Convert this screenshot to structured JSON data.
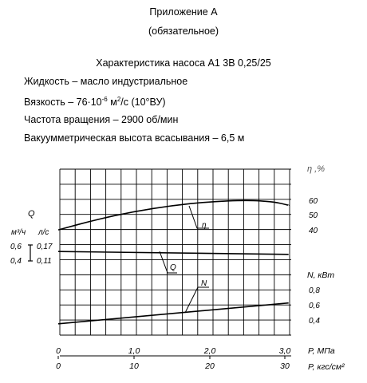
{
  "header": {
    "appendix": "Приложение А",
    "mandatory": "(обязательное)",
    "title": "Характеристика насоса А1 3В 0,25/25",
    "liquid": "Жидкость – масло индустриальное",
    "viscosity_prefix": "Вязкость – 76·10",
    "viscosity_exp": "-6",
    "viscosity_unit": " м",
    "viscosity_unit_exp": "2",
    "viscosity_suffix": "/с (10°ВУ)",
    "speed": "Частота вращения – 2900 об/мин",
    "suction": "Вакуумметрическая высота всасывания – 6,5 м"
  },
  "chart_data": {
    "type": "line",
    "x_axis_primary": {
      "label": "P, МПа",
      "ticks": [
        "0",
        "1,0",
        "2,0",
        "3,0"
      ],
      "range": [
        0,
        3.0
      ]
    },
    "x_axis_secondary": {
      "label": "P, кгс/см²",
      "ticks": [
        "0",
        "10",
        "20",
        "30"
      ],
      "range": [
        0,
        30
      ]
    },
    "left_axis": {
      "label": "Q",
      "unit_m3h": "м³/ч",
      "unit_ls": "л/с",
      "ticks_m3h": [
        "0,6",
        "0,4"
      ],
      "ticks_ls": [
        "0,17",
        "0,11"
      ]
    },
    "right_axis_eta": {
      "label": "η ,%",
      "ticks": [
        "60",
        "50",
        "40"
      ]
    },
    "right_axis_N": {
      "label": "N, кВт",
      "ticks": [
        "0,8",
        "0,6",
        "0,4"
      ]
    },
    "series": [
      {
        "name": "η",
        "axis": "eta",
        "x": [
          0.0,
          0.5,
          1.0,
          1.5,
          2.0,
          2.5,
          2.85,
          3.05
        ],
        "y": [
          38.9,
          45.6,
          51.0,
          54.9,
          57.5,
          58.5,
          57.5,
          55.1
        ]
      },
      {
        "name": "Q",
        "axis": "Q",
        "x": [
          0.0,
          3.05
        ],
        "y": [
          0.52,
          0.48
        ]
      },
      {
        "name": "N",
        "axis": "N",
        "x": [
          0.0,
          3.05
        ],
        "y": [
          0.339,
          0.614
        ]
      }
    ],
    "grid": true
  }
}
